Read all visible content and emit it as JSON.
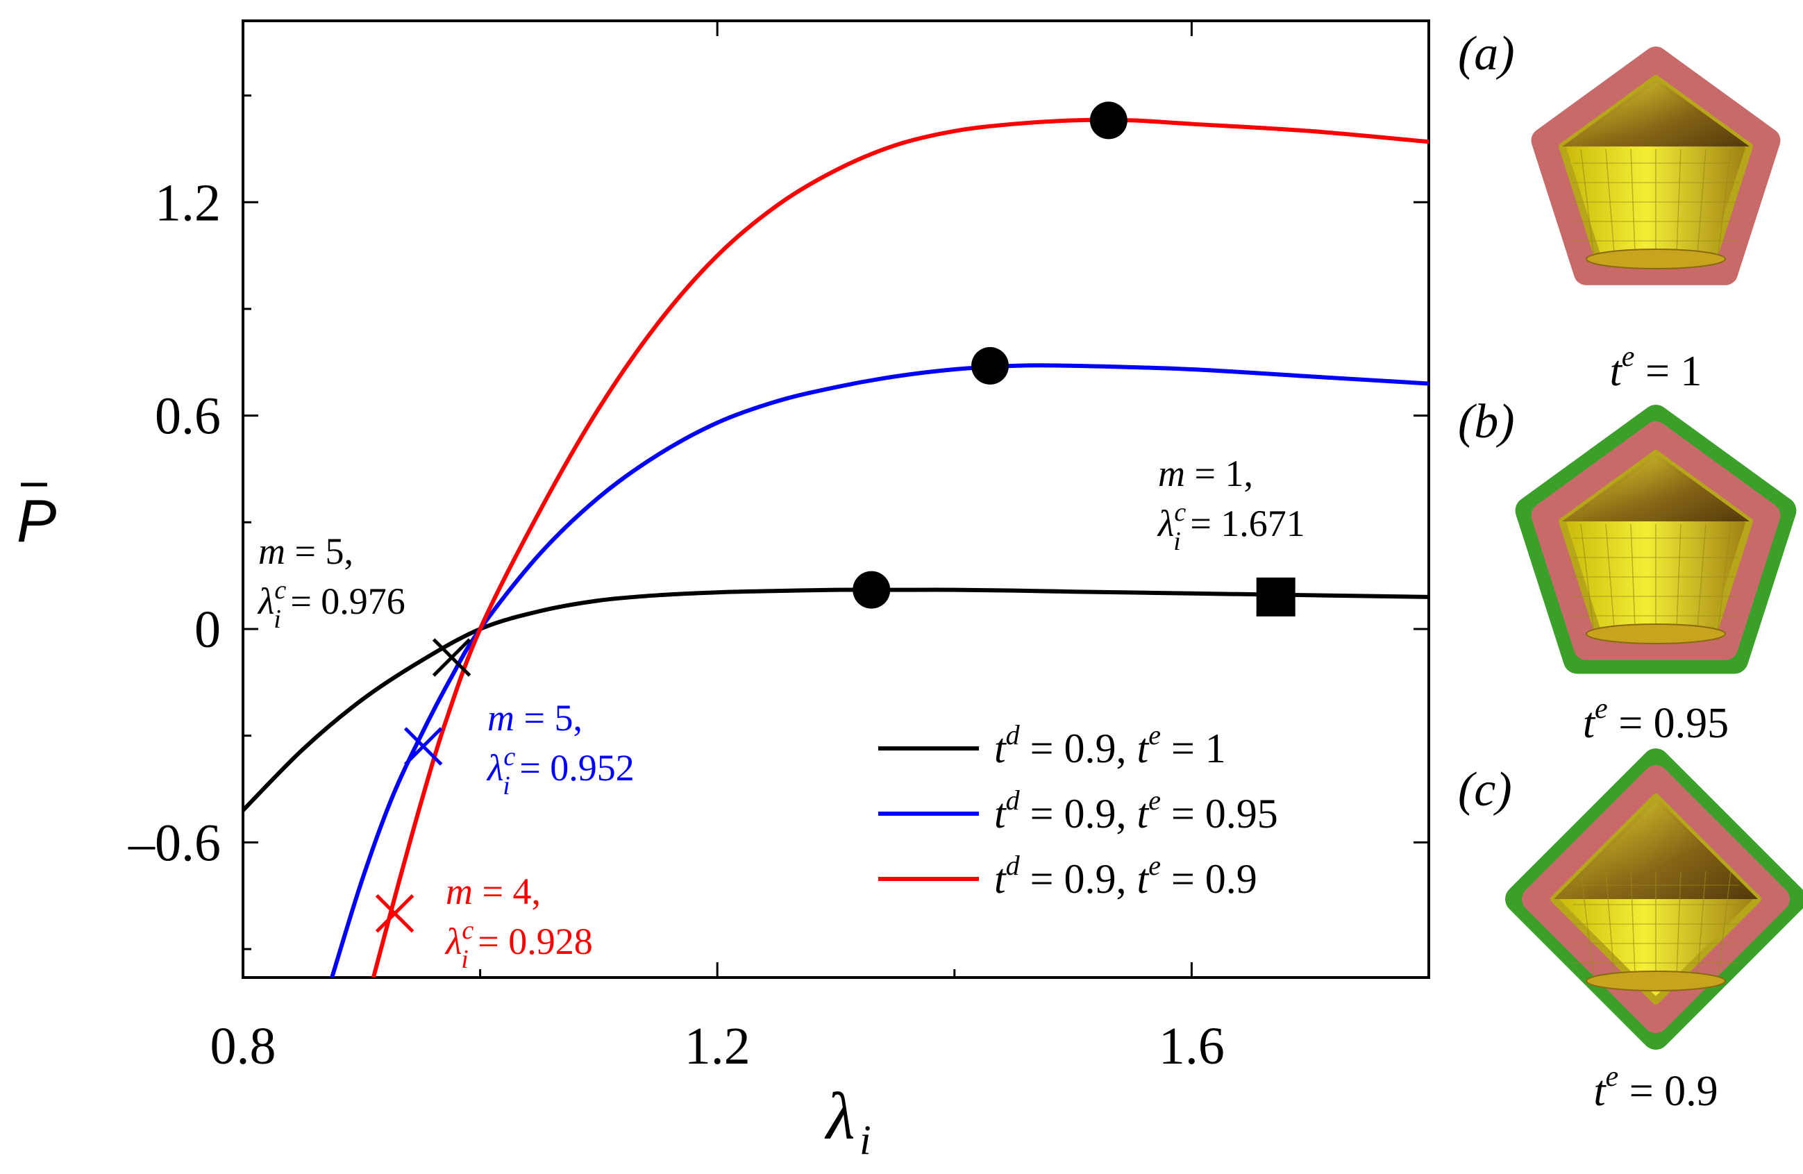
{
  "chart_data": {
    "type": "line",
    "xlabel": "λ",
    "xlabel_sub": "i",
    "ylabel": "P",
    "ylabel_overbar": true,
    "xlim": [
      0.8,
      1.8
    ],
    "ylim": [
      -0.98,
      1.71
    ],
    "xticks": [
      0.8,
      1.2,
      1.6
    ],
    "xtick_labels": [
      "0.8",
      "1.2",
      "1.6"
    ],
    "yticks": [
      -0.6,
      0,
      0.6,
      1.2
    ],
    "ytick_labels": [
      "–0.6",
      "0",
      "0.6",
      "1.2"
    ],
    "grid": false,
    "legend_position": "bottom-right",
    "series": [
      {
        "name": "t^d = 0.9, t^e = 1",
        "legend": {
          "a": "t",
          "asup": "d",
          "av": " = 0.9, ",
          "b": "t",
          "bsup": "e",
          "bv": " = 1"
        },
        "color": "#000000",
        "x": [
          0.8,
          0.85,
          0.9,
          0.95,
          1.0,
          1.05,
          1.1,
          1.15,
          1.2,
          1.25,
          1.3,
          1.35,
          1.4,
          1.45,
          1.5,
          1.6,
          1.7,
          1.8
        ],
        "y": [
          -0.51,
          -0.34,
          -0.2,
          -0.09,
          0.0,
          0.05,
          0.08,
          0.095,
          0.103,
          0.107,
          0.11,
          0.11,
          0.11,
          0.108,
          0.105,
          0.1,
          0.095,
          0.09
        ],
        "max_marker": {
          "x": 1.33,
          "y": 0.11
        },
        "critical": {
          "x": 0.976,
          "y": -0.08,
          "m": "5",
          "lambda_c": "0.976"
        }
      },
      {
        "name": "t^d = 0.9, t^e = 0.95",
        "legend": {
          "a": "t",
          "asup": "d",
          "av": " = 0.9, ",
          "b": "t",
          "bsup": "e",
          "bv": " = 0.95"
        },
        "color": "#0000ff",
        "x": [
          0.875,
          0.9,
          0.925,
          0.95,
          0.975,
          1.0,
          1.05,
          1.1,
          1.15,
          1.2,
          1.25,
          1.3,
          1.35,
          1.4,
          1.45,
          1.5,
          1.6,
          1.7,
          1.8
        ],
        "y": [
          -0.98,
          -0.71,
          -0.48,
          -0.3,
          -0.14,
          0.0,
          0.21,
          0.37,
          0.49,
          0.58,
          0.64,
          0.68,
          0.71,
          0.73,
          0.74,
          0.74,
          0.73,
          0.71,
          0.69
        ],
        "max_marker": {
          "x": 1.43,
          "y": 0.74
        },
        "critical": {
          "x": 0.952,
          "y": -0.33,
          "m": "5",
          "lambda_c": "0.952"
        }
      },
      {
        "name": "t^d = 0.9, t^e = 0.9",
        "legend": {
          "a": "t",
          "asup": "d",
          "av": " = 0.9, ",
          "b": "t",
          "bsup": "e",
          "bv": " = 0.9"
        },
        "color": "#ff0000",
        "x": [
          0.91,
          0.93,
          0.95,
          0.97,
          1.0,
          1.05,
          1.1,
          1.15,
          1.2,
          1.25,
          1.3,
          1.35,
          1.4,
          1.45,
          1.5,
          1.55,
          1.6,
          1.7,
          1.8
        ],
        "y": [
          -0.98,
          -0.73,
          -0.49,
          -0.27,
          0.0,
          0.33,
          0.62,
          0.86,
          1.05,
          1.19,
          1.29,
          1.36,
          1.4,
          1.42,
          1.43,
          1.43,
          1.42,
          1.4,
          1.37
        ],
        "max_marker": {
          "x": 1.53,
          "y": 1.43
        },
        "critical": {
          "x": 0.928,
          "y": -0.8,
          "m": "4",
          "lambda_c": "0.928"
        }
      }
    ],
    "square_marker": {
      "x": 1.671,
      "y": 0.09,
      "m": "1",
      "lambda_c": "1.671"
    },
    "annotation_eq": " = ",
    "annotation_m": "m",
    "annotation_lambda": "λ",
    "annotation_sub": "i",
    "annotation_sup": "c",
    "annotation_comma": ","
  },
  "insets": [
    {
      "panel": "(a)",
      "caption_t": "t",
      "caption_sup": "e",
      "caption_val": " = 1",
      "shell_layer": "pink",
      "outer_layer": "none"
    },
    {
      "panel": "(b)",
      "caption_t": "t",
      "caption_sup": "e",
      "caption_val": " = 0.95",
      "shell_layer": "pink",
      "outer_layer": "green"
    },
    {
      "panel": "(c)",
      "caption_t": "t",
      "caption_sup": "e",
      "caption_val": " = 0.9",
      "shell_layer": "pink",
      "outer_layer": "green"
    }
  ],
  "colors": {
    "shell_pink": "#c86a6a",
    "outer_green": "#3aa02a",
    "inner_yellow": "#e6dc20",
    "inner_brown": "#8a5a10"
  }
}
